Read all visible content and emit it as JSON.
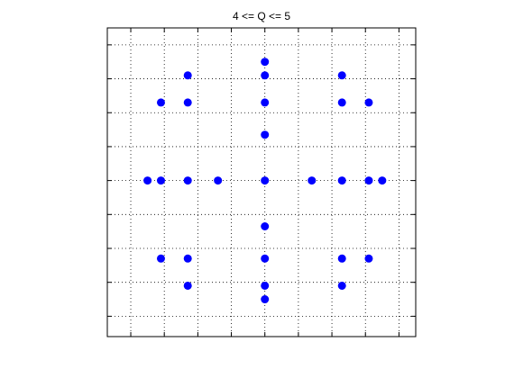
{
  "chart_data": {
    "type": "scatter",
    "title": "4 <= Q <= 5",
    "xlabel": "",
    "ylabel": "",
    "xlim": [
      -4.7,
      4.5
    ],
    "ylim": [
      -4.6,
      4.5
    ],
    "xticks": [
      -4,
      -3,
      -2,
      -1,
      0,
      1,
      2,
      3,
      4
    ],
    "yticks": [
      -4,
      -3,
      -2,
      -1,
      0,
      1,
      2,
      3,
      4
    ],
    "show_tick_labels": false,
    "grid": true,
    "marker_color": "#0000ff",
    "series": [
      {
        "x": [
          0,
          0,
          -2.3,
          2.3,
          -3.1,
          -2.3,
          0,
          2.3,
          3.1,
          0,
          -3.5,
          -3.1,
          -2.3,
          -1.4,
          0,
          1.4,
          2.3,
          3.1,
          3.5,
          0,
          -3.1,
          -2.3,
          0,
          2.3,
          3.1,
          -2.3,
          0,
          2.3,
          0
        ],
        "y": [
          3.5,
          3.1,
          3.1,
          3.1,
          2.3,
          2.3,
          2.3,
          2.3,
          2.3,
          1.35,
          0,
          0,
          0,
          0,
          0,
          0,
          0,
          0,
          0,
          -1.35,
          -2.3,
          -2.3,
          -2.3,
          -2.3,
          -2.3,
          -3.1,
          -3.1,
          -3.1,
          -3.5
        ]
      }
    ]
  }
}
